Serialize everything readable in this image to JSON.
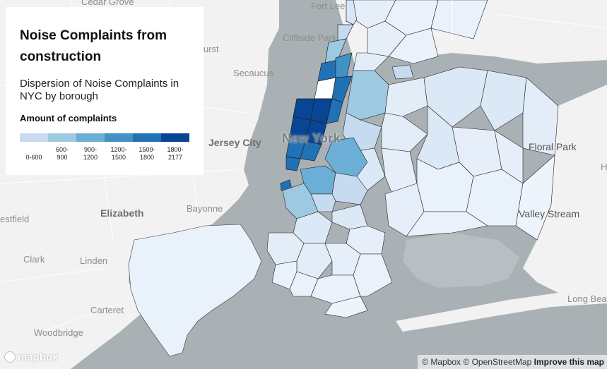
{
  "legend_panel": {
    "title": "Noise Complaints from construction",
    "subtitle": "Dispersion of Noise Complaints in NYC by borough",
    "legend_title": "Amount of complaints",
    "bins": [
      {
        "label": "0-600",
        "color": "#c6dbef"
      },
      {
        "label": "600-\n900",
        "color": "#9ecae1"
      },
      {
        "label": "900-\n1200",
        "color": "#6baed6"
      },
      {
        "label": "1200-\n1500",
        "color": "#4292c6"
      },
      {
        "label": "1500-\n1800",
        "color": "#2171b5"
      },
      {
        "label": "1800-\n2177",
        "color": "#084594"
      }
    ]
  },
  "map": {
    "land_color": "#f2f2f2",
    "water_color": "#aab1b5",
    "place_labels": [
      {
        "name": "Cedar Grove"
      },
      {
        "name": "Fort Lee"
      },
      {
        "name": "Cliffside Park"
      },
      {
        "name": "urst"
      },
      {
        "name": "Secaucus"
      },
      {
        "name": "Jersey City"
      },
      {
        "name": "New York"
      },
      {
        "name": "Floral Park"
      },
      {
        "name": "Elizabeth"
      },
      {
        "name": "Bayonne"
      },
      {
        "name": "Valley Stream"
      },
      {
        "name": "estfield"
      },
      {
        "name": "Clark"
      },
      {
        "name": "Linden"
      },
      {
        "name": "Carteret"
      },
      {
        "name": "Woodbridge"
      },
      {
        "name": "Long Bea"
      },
      {
        "name": "H"
      }
    ]
  },
  "attribution": {
    "mapbox": "© Mapbox",
    "osm": "© OpenStreetMap",
    "improve": "Improve this map"
  },
  "logo": {
    "text": "mapbox"
  }
}
